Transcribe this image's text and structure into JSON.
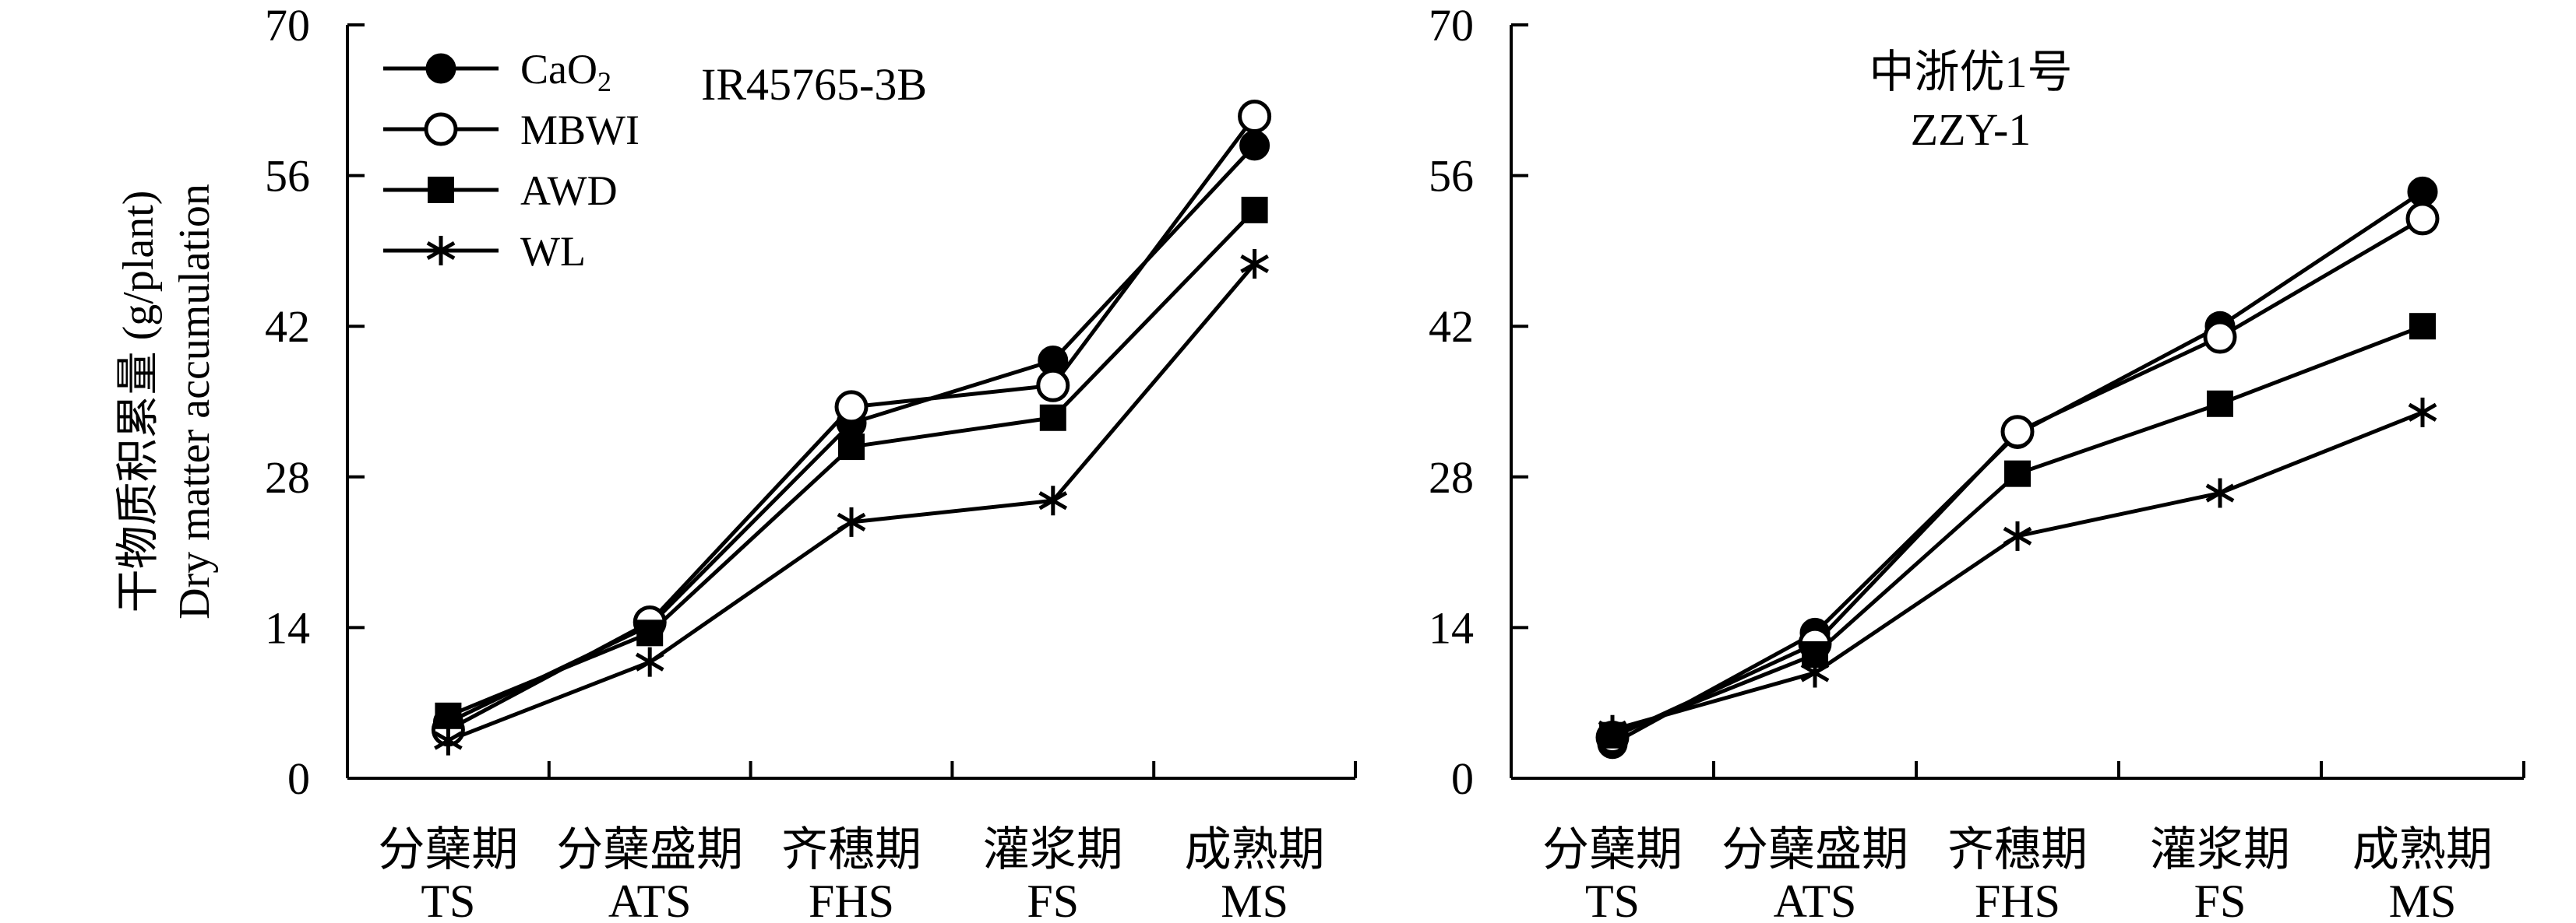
{
  "chart_data": [
    {
      "type": "line",
      "title": "IR45765-3B",
      "ylabel_lines": [
        "干物质积累量 (g/plant)",
        "Dry matter accumulation"
      ],
      "ylim": [
        0,
        70
      ],
      "yticks": [
        0,
        14,
        28,
        42,
        56,
        70
      ],
      "categories": [
        {
          "zh": "分蘖期",
          "en": "TS"
        },
        {
          "zh": "分蘖盛期",
          "en": "ATS"
        },
        {
          "zh": "齐穗期",
          "en": "FHS"
        },
        {
          "zh": "灌浆期",
          "en": "FS"
        },
        {
          "zh": "成熟期",
          "en": "MS"
        }
      ],
      "legend_position": "top-left",
      "series": [
        {
          "name": "CaO",
          "name_sub": "2",
          "marker": "filled-circle",
          "values": [
            5.2,
            14.2,
            33.0,
            38.8,
            58.8
          ]
        },
        {
          "name": "MBWI",
          "marker": "open-circle",
          "values": [
            4.5,
            14.5,
            34.5,
            36.5,
            61.5
          ]
        },
        {
          "name": "AWD",
          "marker": "filled-square",
          "values": [
            5.8,
            13.5,
            30.8,
            33.5,
            52.8
          ]
        },
        {
          "name": "WL",
          "marker": "asterisk",
          "values": [
            3.5,
            10.8,
            23.8,
            25.8,
            47.8
          ]
        }
      ]
    },
    {
      "type": "line",
      "title_lines": [
        "中浙优1号",
        "ZZY-1"
      ],
      "ylim": [
        0,
        70
      ],
      "yticks": [
        0,
        14,
        28,
        42,
        56,
        70
      ],
      "categories": [
        {
          "zh": "分蘖期",
          "en": "TS"
        },
        {
          "zh": "分蘖盛期",
          "en": "ATS"
        },
        {
          "zh": "齐穗期",
          "en": "FHS"
        },
        {
          "zh": "灌浆期",
          "en": "FS"
        },
        {
          "zh": "成熟期",
          "en": "MS"
        }
      ],
      "series": [
        {
          "name": "CaO2",
          "marker": "filled-circle",
          "values": [
            3.2,
            13.5,
            32.0,
            42.0,
            54.5
          ]
        },
        {
          "name": "MBWI",
          "marker": "open-circle",
          "values": [
            3.8,
            12.5,
            32.2,
            41.0,
            52.0
          ]
        },
        {
          "name": "AWD",
          "marker": "filled-square",
          "values": [
            4.0,
            11.5,
            28.3,
            34.8,
            42.0
          ]
        },
        {
          "name": "WL",
          "marker": "asterisk",
          "values": [
            4.5,
            9.8,
            22.5,
            26.5,
            34.0
          ]
        }
      ]
    }
  ]
}
